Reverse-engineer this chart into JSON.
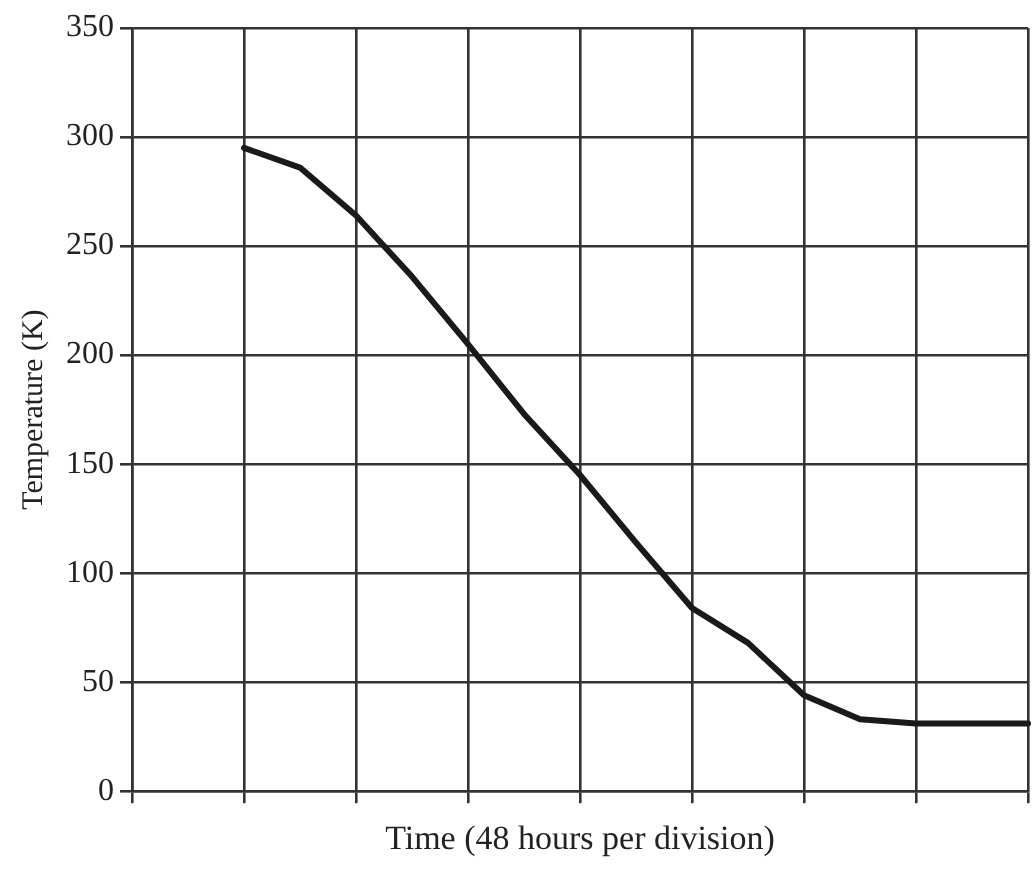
{
  "chart_data": {
    "type": "line",
    "xlabel": "Time (48 hours per division)",
    "ylabel": "Temperature (K)",
    "categories": [
      null,
      null,
      null,
      null,
      null,
      null,
      null,
      null,
      null,
      null,
      null,
      null,
      null,
      null,
      null,
      null,
      null
    ],
    "series": [
      {
        "color": "#1a1a1a",
        "values": [
          null,
          null,
          295,
          286,
          264,
          236,
          205,
          173,
          145,
          114,
          84,
          68,
          44,
          33,
          31,
          31,
          31
        ]
      }
    ],
    "ylim": [
      0,
      350
    ],
    "yticks": [
      0,
      50,
      100,
      150,
      200,
      250,
      300,
      350
    ],
    "grid": true,
    "tick_labels": "y",
    "marker": "none",
    "line_style": "solid",
    "legend": false
  }
}
